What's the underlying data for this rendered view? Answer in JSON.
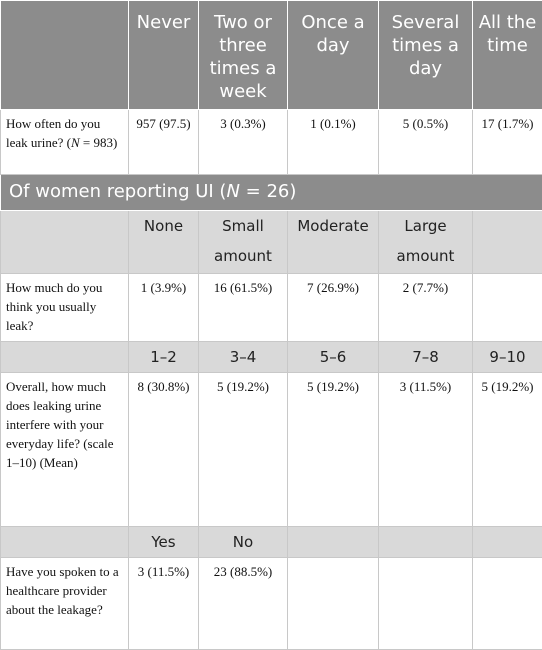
{
  "frequency": {
    "columns": [
      "Never",
      "Two or three times a week",
      "Once a day",
      "Several times a day",
      "All the time"
    ],
    "question": {
      "pre": "How often do you leak urine? (",
      "var": "N",
      "post": " = 983)"
    },
    "values": [
      "957 (97.5)",
      "3 (0.3%)",
      "1 (0.1%)",
      "5 (0.5%)",
      "17 (1.7%)"
    ]
  },
  "section": {
    "pre": "Of women reporting UI (",
    "var": "N",
    "post": " = 26)"
  },
  "amount": {
    "columns": [
      "None",
      "Small amount",
      "Moderate",
      "Large amount"
    ],
    "question": "How much do you think you usually leak?",
    "values": [
      "1 (3.9%)",
      "16 (61.5%)",
      "7 (26.9%)",
      "2 (7.7%)"
    ]
  },
  "interference": {
    "columns": [
      "1–2",
      "3–4",
      "5–6",
      "7–8",
      "9–10"
    ],
    "question": "Overall, how much does leaking urine interfere with your everyday life? (scale 1–10) (Mean)",
    "values": [
      "8 (30.8%)",
      "5 (19.2%)",
      "5 (19.2%)",
      "3 (11.5%)",
      "5 (19.2%)"
    ]
  },
  "spoken": {
    "columns": [
      "Yes",
      "No"
    ],
    "question": "Have you spoken to a healthcare provider about the leakage?",
    "values": [
      "3 (11.5%)",
      "23 (88.5%)"
    ]
  }
}
